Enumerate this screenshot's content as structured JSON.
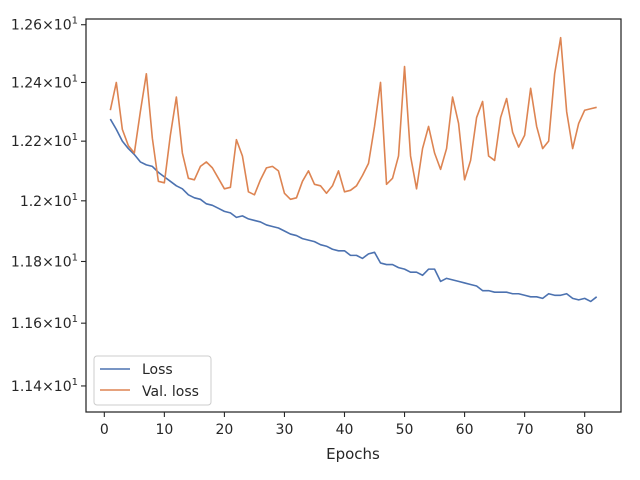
{
  "chart_data": {
    "type": "line",
    "title": "",
    "xlabel": "Epochs",
    "ylabel": "",
    "xlim": [
      -3.05,
      86.05
    ],
    "ylim": [
      11.318,
      12.62
    ],
    "yscale": "log",
    "grid": false,
    "legend_position": "lower-left",
    "x_ticks": [
      0,
      10,
      20,
      30,
      40,
      50,
      60,
      70,
      80
    ],
    "x_tick_labels": [
      "0",
      "10",
      "20",
      "30",
      "40",
      "50",
      "60",
      "70",
      "80"
    ],
    "y_ticks": [
      11.4,
      11.6,
      11.8,
      12.0,
      12.2,
      12.4,
      12.6
    ],
    "y_tick_labels": [
      {
        "mant": "1.14",
        "exp": "1"
      },
      {
        "mant": "1.16",
        "exp": "1"
      },
      {
        "mant": "1.18",
        "exp": "1"
      },
      {
        "mant": "1.2",
        "exp": "1"
      },
      {
        "mant": "1.22",
        "exp": "1"
      },
      {
        "mant": "1.24",
        "exp": "1"
      },
      {
        "mant": "1.26",
        "exp": "1"
      }
    ],
    "tick_times": "×10",
    "x": [
      1,
      2,
      3,
      4,
      5,
      6,
      7,
      8,
      9,
      10,
      11,
      12,
      13,
      14,
      15,
      16,
      17,
      18,
      19,
      20,
      21,
      22,
      23,
      24,
      25,
      26,
      27,
      28,
      29,
      30,
      31,
      32,
      33,
      34,
      35,
      36,
      37,
      38,
      39,
      40,
      41,
      42,
      43,
      44,
      45,
      46,
      47,
      48,
      49,
      50,
      51,
      52,
      53,
      54,
      55,
      56,
      57,
      58,
      59,
      60,
      61,
      62,
      63,
      64,
      65,
      66,
      67,
      68,
      69,
      70,
      71,
      72,
      73,
      74,
      75,
      76,
      77,
      78,
      79,
      80,
      81,
      82
    ],
    "series": [
      {
        "name": "Loss",
        "color": "#4c72b0",
        "values": [
          12.275,
          12.24,
          12.2,
          12.175,
          12.155,
          12.13,
          12.12,
          12.115,
          12.095,
          12.08,
          12.065,
          12.05,
          12.04,
          12.02,
          12.01,
          12.005,
          11.99,
          11.985,
          11.975,
          11.965,
          11.96,
          11.945,
          11.95,
          11.94,
          11.935,
          11.93,
          11.92,
          11.915,
          11.91,
          11.9,
          11.89,
          11.885,
          11.875,
          11.87,
          11.865,
          11.855,
          11.85,
          11.84,
          11.835,
          11.835,
          11.82,
          11.82,
          11.81,
          11.825,
          11.83,
          11.795,
          11.79,
          11.79,
          11.78,
          11.775,
          11.765,
          11.765,
          11.755,
          11.775,
          11.775,
          11.735,
          11.745,
          11.74,
          11.735,
          11.73,
          11.725,
          11.72,
          11.705,
          11.705,
          11.7,
          11.7,
          11.7,
          11.695,
          11.695,
          11.69,
          11.685,
          11.685,
          11.68,
          11.695,
          11.69,
          11.69,
          11.695,
          11.68,
          11.675,
          11.68,
          11.67,
          11.685
        ]
      },
      {
        "name": "Val. loss",
        "color": "#dd8452",
        "values": [
          12.305,
          12.4,
          12.24,
          12.185,
          12.16,
          12.3,
          12.43,
          12.21,
          12.065,
          12.06,
          12.22,
          12.35,
          12.16,
          12.075,
          12.07,
          12.115,
          12.13,
          12.11,
          12.075,
          12.04,
          12.045,
          12.205,
          12.15,
          12.03,
          12.02,
          12.07,
          12.11,
          12.115,
          12.1,
          12.025,
          12.005,
          12.01,
          12.065,
          12.1,
          12.055,
          12.05,
          12.025,
          12.05,
          12.1,
          12.03,
          12.035,
          12.05,
          12.085,
          12.125,
          12.25,
          12.4,
          12.055,
          12.075,
          12.15,
          12.455,
          12.15,
          12.04,
          12.175,
          12.25,
          12.16,
          12.105,
          12.175,
          12.35,
          12.26,
          12.07,
          12.135,
          12.28,
          12.335,
          12.15,
          12.135,
          12.28,
          12.345,
          12.23,
          12.18,
          12.22,
          12.38,
          12.25,
          12.175,
          12.2,
          12.43,
          12.555,
          12.3,
          12.175,
          12.26,
          12.305,
          12.31,
          12.315
        ]
      }
    ]
  }
}
